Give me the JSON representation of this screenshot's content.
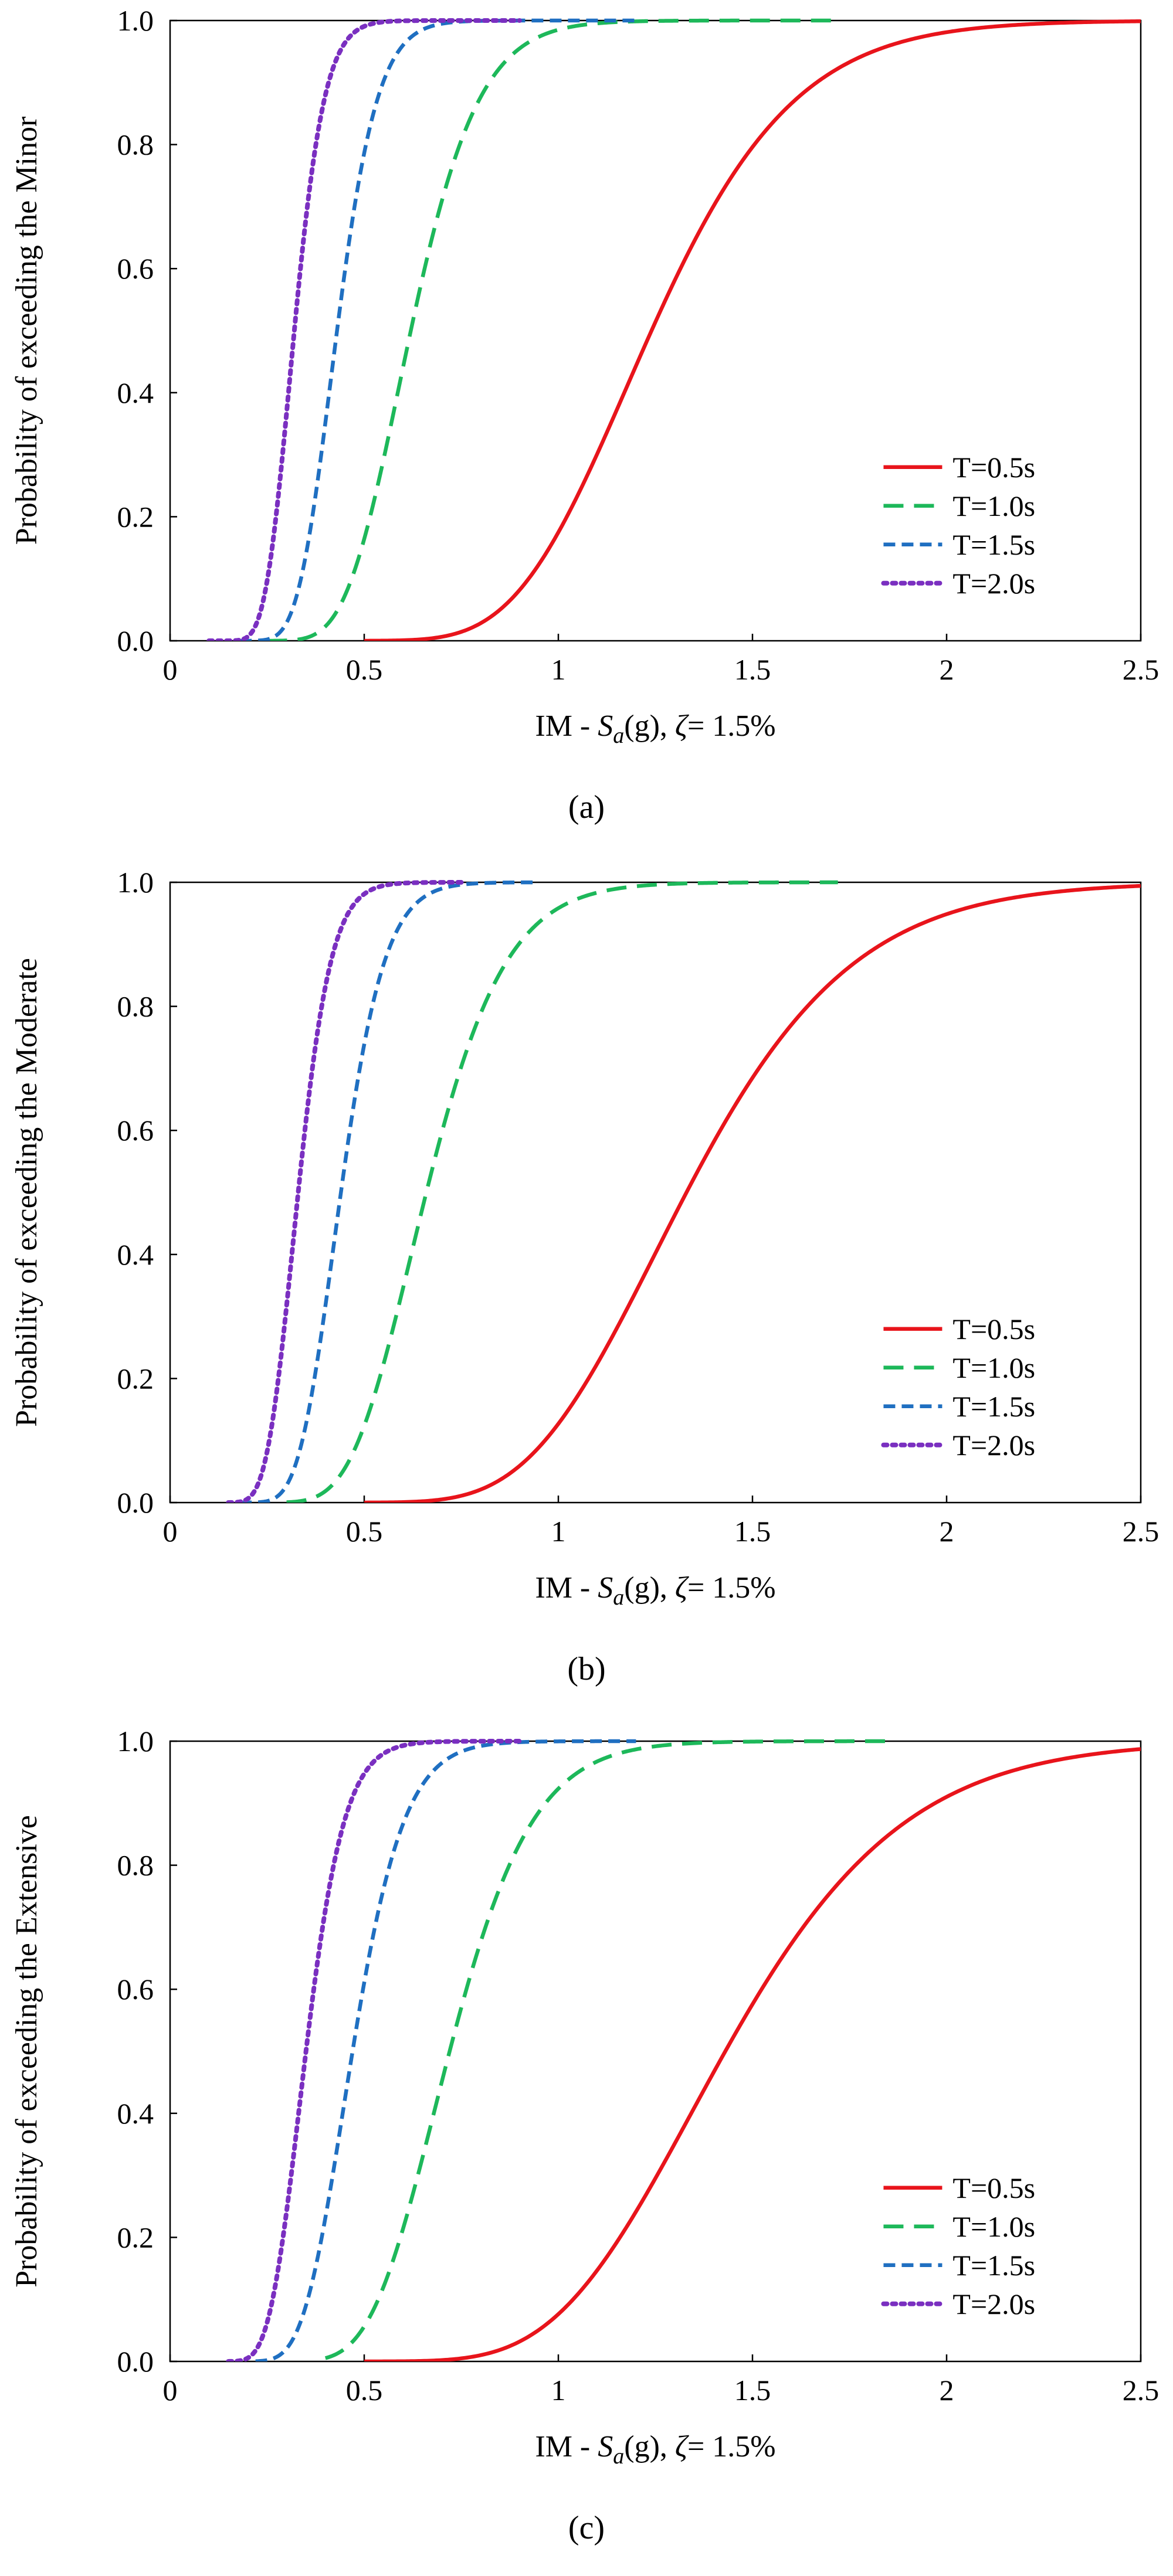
{
  "chart_data": [
    {
      "type": "line",
      "panel": "a",
      "caption": "(a)",
      "title": "",
      "xlabel": "IM - Sa(g), ζ= 1.5%",
      "xlabel_parts": {
        "prefix": "IM - ",
        "var": "S",
        "sub": "a",
        "suffix_g": "(g), ",
        "zeta": "ζ",
        "rest": "= 1.5%"
      },
      "ylabel": "Probability  of exceeding  the Minor",
      "xlim": [
        0,
        2.5
      ],
      "ylim": [
        0,
        1.0
      ],
      "xticks": [
        "0",
        "0.5",
        "1",
        "1.5",
        "2",
        "2.5"
      ],
      "yticks": [
        "0.0",
        "0.2",
        "0.4",
        "0.6",
        "0.8",
        "1.0"
      ],
      "legend_position": "bottom-right",
      "series": [
        {
          "name": "T=0.5s",
          "color": "#e8141b",
          "style": "solid",
          "median": 1.24,
          "beta": 0.23,
          "x_start": 0.5
        },
        {
          "name": "T=1.0s",
          "color": "#1db85a",
          "style": "dash",
          "median": 0.62,
          "beta": 0.22,
          "x_start": 0.25,
          "x_end": 1.72
        },
        {
          "name": "T=1.5s",
          "color": "#1f6fc1",
          "style": "shortdash",
          "median": 0.43,
          "beta": 0.19,
          "x_start": 0.18,
          "x_end": 1.2
        },
        {
          "name": "T=2.0s",
          "color": "#7a2fc0",
          "style": "dot",
          "median": 0.32,
          "beta": 0.19,
          "x_start": 0.1,
          "x_end": 0.9
        }
      ]
    },
    {
      "type": "line",
      "panel": "b",
      "caption": "(b)",
      "title": "",
      "xlabel": "IM - Sa(g), ζ= 1.5%",
      "xlabel_parts": {
        "prefix": "IM - ",
        "var": "S",
        "sub": "a",
        "suffix_g": "(g), ",
        "zeta": "ζ",
        "rest": "= 1.5%"
      },
      "ylabel": "Probability  of exceeding  the Moderate",
      "xlim": [
        0,
        2.5
      ],
      "ylim": [
        0,
        1.0
      ],
      "xticks": [
        "0",
        "0.5",
        "1",
        "1.5",
        "2",
        "2.5"
      ],
      "yticks": [
        "0.0",
        "0.2",
        "0.4",
        "0.6",
        "0.8",
        "1.0"
      ],
      "legend_position": "bottom-right",
      "series": [
        {
          "name": "T=0.5s",
          "color": "#e8141b",
          "style": "solid",
          "median": 1.33,
          "beta": 0.25,
          "x_start": 0.5
        },
        {
          "name": "T=1.0s",
          "color": "#1db85a",
          "style": "dash",
          "median": 0.66,
          "beta": 0.24,
          "x_start": 0.3,
          "x_end": 1.72
        },
        {
          "name": "T=1.5s",
          "color": "#1f6fc1",
          "style": "shortdash",
          "median": 0.44,
          "beta": 0.2,
          "x_start": 0.18,
          "x_end": 0.95
        },
        {
          "name": "T=2.0s",
          "color": "#7a2fc0",
          "style": "dot",
          "median": 0.33,
          "beta": 0.2,
          "x_start": 0.15,
          "x_end": 0.75
        }
      ]
    },
    {
      "type": "line",
      "panel": "c",
      "caption": "(c)",
      "title": "",
      "xlabel": "IM - Sa(g), ζ= 1.5%",
      "xlabel_parts": {
        "prefix": "IM - ",
        "var": "S",
        "sub": "a",
        "suffix_g": "(g), ",
        "zeta": "ζ",
        "rest": "= 1.5%"
      },
      "ylabel": "Probability  of exceeding  the Extensive",
      "xlim": [
        0,
        2.5
      ],
      "ylim": [
        0,
        1.0
      ],
      "xticks": [
        "0",
        "0.5",
        "1",
        "1.5",
        "2",
        "2.5"
      ],
      "yticks": [
        "0.0",
        "0.2",
        "0.4",
        "0.6",
        "0.8",
        "1.0"
      ],
      "legend_position": "bottom-right",
      "series": [
        {
          "name": "T=0.5s",
          "color": "#e8141b",
          "style": "solid",
          "median": 1.43,
          "beta": 0.25,
          "x_start": 0.5
        },
        {
          "name": "T=1.0s",
          "color": "#1db85a",
          "style": "dash",
          "median": 0.72,
          "beta": 0.23,
          "x_start": 0.4,
          "x_end": 1.85
        },
        {
          "name": "T=1.5s",
          "color": "#1f6fc1",
          "style": "shortdash",
          "median": 0.47,
          "beta": 0.22,
          "x_start": 0.22,
          "x_end": 1.2
        },
        {
          "name": "T=2.0s",
          "color": "#7a2fc0",
          "style": "dot",
          "median": 0.35,
          "beta": 0.22,
          "x_start": 0.15,
          "x_end": 0.9
        }
      ]
    }
  ]
}
